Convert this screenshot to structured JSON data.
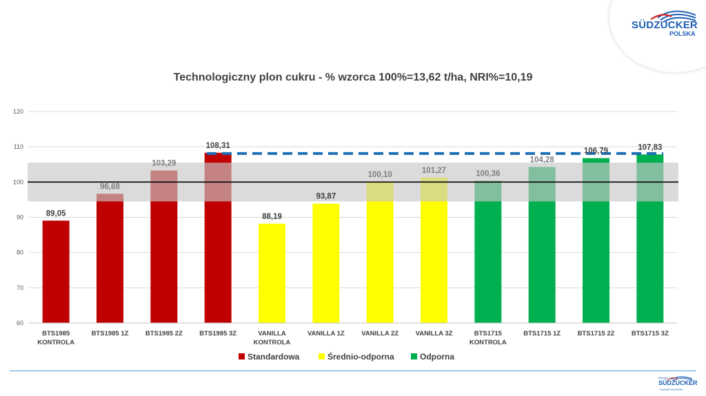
{
  "brand": {
    "name": "SÜDZUCKER",
    "sub": "POLSKA"
  },
  "footer": {
    "small_top": "Member of",
    "brand": "SÜDZUCKER",
    "sub": "SUGAR DIVISION"
  },
  "chart_data": {
    "type": "bar",
    "title": "Technologiczny plon cukru - % wzorca 100%=13,62 t/ha, NRI%=10,19",
    "categories": [
      [
        "BTS1985",
        "KONTROLA"
      ],
      [
        "BTS1985 1Z"
      ],
      [
        "BTS1985 2Z"
      ],
      [
        "BTS1985 3Z"
      ],
      [
        "VANILLA",
        "KONTROLA"
      ],
      [
        "VANILLA 1Z"
      ],
      [
        "VANILLA 2Z"
      ],
      [
        "VANILLA 3Z"
      ],
      [
        "BTS1715",
        "KONTROLA"
      ],
      [
        "BTS1715 1Z"
      ],
      [
        "BTS1715 2Z"
      ],
      [
        "BTS1715 3Z"
      ]
    ],
    "values": [
      89.05,
      96.68,
      103.29,
      108.31,
      88.19,
      93.87,
      100.1,
      101.27,
      100.36,
      104.28,
      106.79,
      107.83
    ],
    "value_labels": [
      "89,05",
      "96,68",
      "103,29",
      "108,31",
      "88,19",
      "93,87",
      "100,10",
      "101,27",
      "100,36",
      "104,28",
      "106,79",
      "107,83"
    ],
    "groups": [
      0,
      0,
      0,
      0,
      1,
      1,
      1,
      1,
      2,
      2,
      2,
      2
    ],
    "legend": [
      {
        "name": "Standardowa",
        "color": "#c00000"
      },
      {
        "name": "Średnio-odporna",
        "color": "#ffff00"
      },
      {
        "name": "Odporna",
        "color": "#00b050"
      }
    ],
    "legend_position": "bottom",
    "ylim": [
      60,
      120
    ],
    "yticks": [
      60,
      70,
      80,
      90,
      100,
      110,
      120
    ],
    "reference_line": 100,
    "band": [
      94.5,
      105.5
    ],
    "band_color": "#c8c8c8",
    "dashed_line": {
      "value": 108.1,
      "color": "#1f6fb5"
    },
    "grid": true,
    "xlabel": "",
    "ylabel": ""
  }
}
